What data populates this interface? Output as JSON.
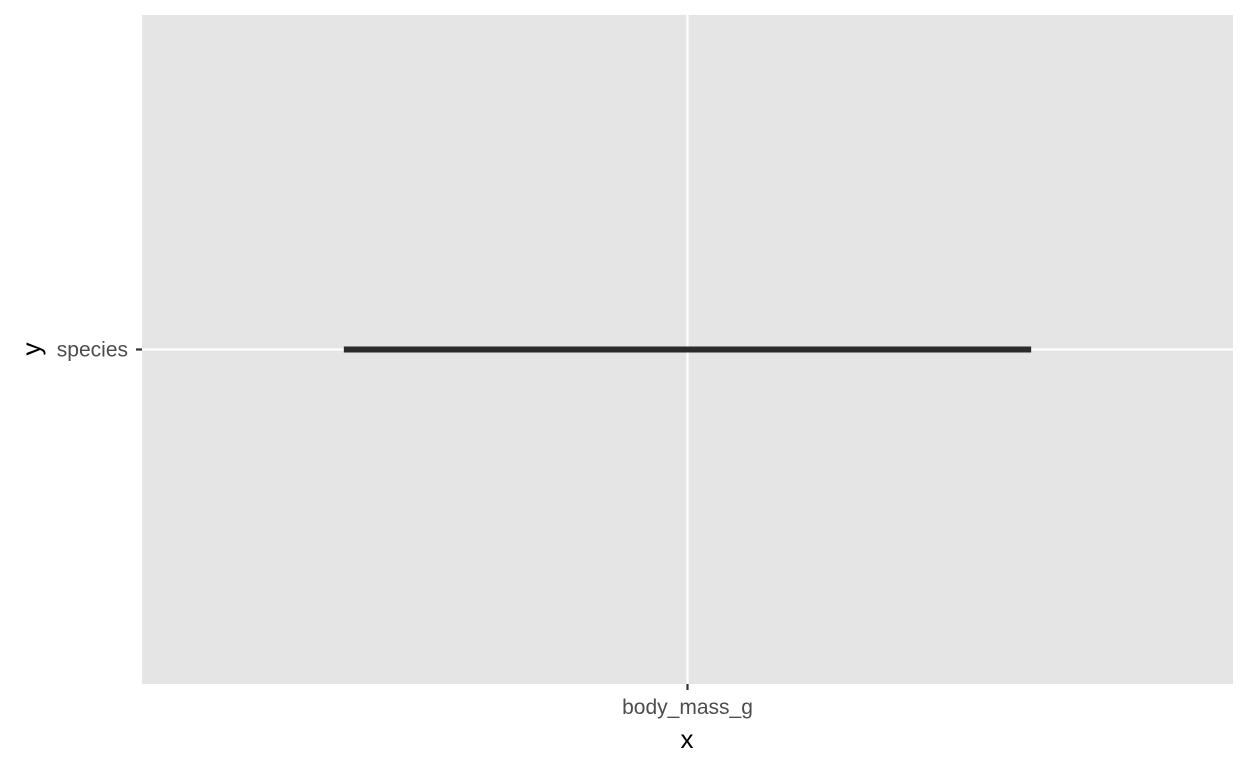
{
  "chart_data": {
    "type": "line",
    "title": "",
    "xlabel": "x",
    "ylabel": "y",
    "x_categories": [
      "body_mass_g"
    ],
    "y_categories": [
      "species"
    ],
    "segments": [
      {
        "y": "species",
        "x_start": -0.63,
        "x_end": 0.63
      }
    ],
    "xlim": [
      -1.0,
      1.0
    ],
    "grid": true,
    "legend": "none",
    "colors": {
      "panel_background": "#e5e5e5",
      "grid_line": "#ffffff",
      "segment": "#2b2b2b",
      "tick_label": "#4d4d4d",
      "axis_title": "#000000"
    }
  }
}
